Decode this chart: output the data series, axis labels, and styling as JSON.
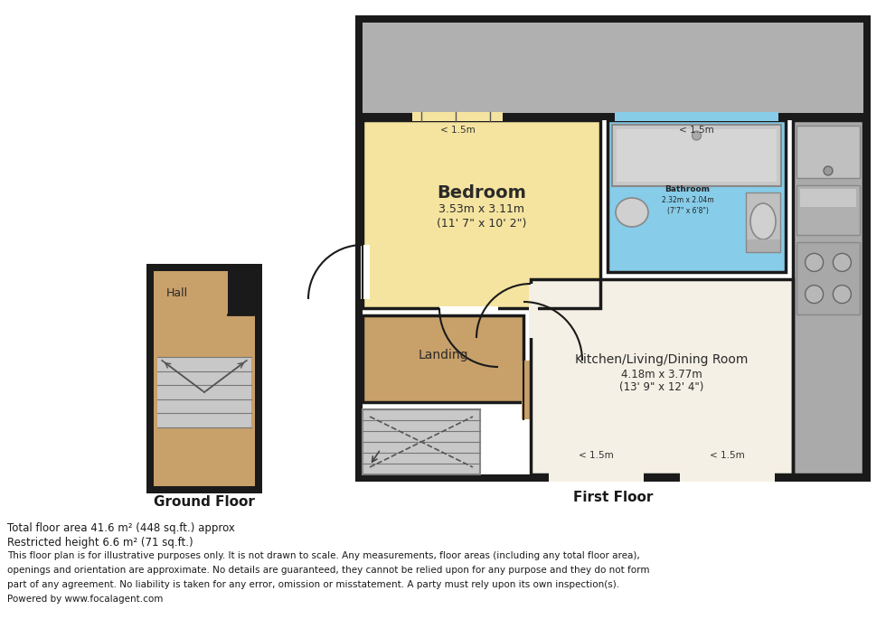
{
  "bg_color": "#ffffff",
  "wall_color": "#1a1a1a",
  "bedroom_color": "#f5e4a0",
  "bathroom_color": "#87cce8",
  "landing_color": "#c8a06a",
  "hall_color": "#c8a06a",
  "kitchen_color": "#f5f0e5",
  "roof_color": "#b0b0b0",
  "stairs_color": "#c8c8c8",
  "appliance_color": "#aaaaaa",
  "footer_line1": "Total floor area 41.6 m² (448 sq.ft.) approx",
  "footer_line2": "Restricted height 6.6 m² (71 sq.ft.)",
  "footer_line3": "This floor plan is for illustrative purposes only. It is not drawn to scale. Any measurements, floor areas (including any total floor area),",
  "footer_line4": "openings and orientation are approximate. No details are guaranteed, they cannot be relied upon for any purpose and they do not form",
  "footer_line5": "part of any agreement. No liability is taken for any error, omission or misstatement. A party must rely upon its own inspection(s).",
  "footer_line6": "Powered by www.focalagent.com",
  "gf_label": "Ground Floor",
  "ff_label": "First Floor",
  "bedroom_label1": "Bedroom",
  "bedroom_label2": "3.53m x 3.11m",
  "bedroom_label3": "(11' 7\" x 10' 2\")",
  "bathroom_label1": "Bathroom",
  "bathroom_label2": "2.32m x 2.04m",
  "bathroom_label3": "(7'7\" x 6'8\")",
  "kitchen_label1": "Kitchen/Living/Dining Room",
  "kitchen_label2": "4.18m x 3.77m",
  "kitchen_label3": "(13' 9\" x 12' 4\")",
  "landing_label": "Landing",
  "hall_label": "Hall",
  "window_label": "< 1.5m"
}
